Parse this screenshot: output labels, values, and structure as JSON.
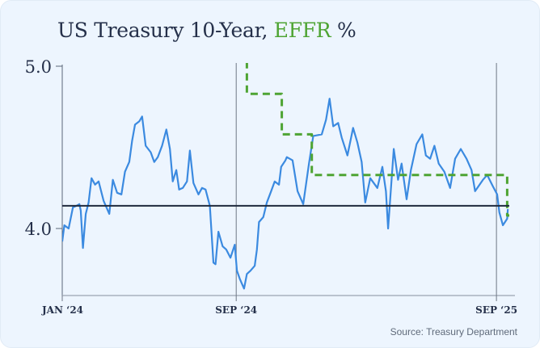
{
  "chart_data": {
    "type": "line",
    "title_parts": {
      "main": "US Treasury 10-Year, ",
      "accent": "EFFR",
      "suffix": " %"
    },
    "x_unit": "days since Jan 1 2024",
    "xlim": [
      0,
      627
    ],
    "ylim": [
      3.6,
      5.0
    ],
    "y_ticks": [
      {
        "value": 4.0,
        "label": "4.0"
      },
      {
        "value": 5.0,
        "label": "5.0"
      }
    ],
    "x_ticks": [
      {
        "value": 0,
        "label": "JAN ‘24"
      },
      {
        "value": 244,
        "label": "SEP ‘24"
      },
      {
        "value": 609,
        "label": "SEP ‘25"
      }
    ],
    "reference_line": 4.14,
    "series": [
      {
        "name": "US Treasury 10-Year",
        "color": "#3b8ae0",
        "style": "solid",
        "points": [
          [
            0,
            3.92
          ],
          [
            3,
            4.02
          ],
          [
            9,
            4.0
          ],
          [
            15,
            4.13
          ],
          [
            20,
            4.14
          ],
          [
            24,
            4.15
          ],
          [
            26,
            4.11
          ],
          [
            29,
            3.88
          ],
          [
            33,
            4.09
          ],
          [
            37,
            4.16
          ],
          [
            41,
            4.31
          ],
          [
            46,
            4.27
          ],
          [
            51,
            4.29
          ],
          [
            58,
            4.17
          ],
          [
            66,
            4.09
          ],
          [
            71,
            4.3
          ],
          [
            77,
            4.22
          ],
          [
            83,
            4.21
          ],
          [
            88,
            4.35
          ],
          [
            94,
            4.41
          ],
          [
            98,
            4.54
          ],
          [
            102,
            4.64
          ],
          [
            108,
            4.66
          ],
          [
            112,
            4.69
          ],
          [
            117,
            4.51
          ],
          [
            124,
            4.47
          ],
          [
            129,
            4.41
          ],
          [
            134,
            4.44
          ],
          [
            140,
            4.51
          ],
          [
            146,
            4.61
          ],
          [
            151,
            4.49
          ],
          [
            155,
            4.29
          ],
          [
            160,
            4.36
          ],
          [
            164,
            4.24
          ],
          [
            169,
            4.25
          ],
          [
            175,
            4.29
          ],
          [
            179,
            4.48
          ],
          [
            184,
            4.28
          ],
          [
            191,
            4.21
          ],
          [
            196,
            4.25
          ],
          [
            201,
            4.24
          ],
          [
            207,
            4.14
          ],
          [
            212,
            3.79
          ],
          [
            215,
            3.78
          ],
          [
            219,
            3.98
          ],
          [
            225,
            3.89
          ],
          [
            230,
            3.87
          ],
          [
            236,
            3.82
          ],
          [
            242,
            3.9
          ],
          [
            245,
            3.74
          ],
          [
            249,
            3.69
          ],
          [
            255,
            3.63
          ],
          [
            259,
            3.72
          ],
          [
            264,
            3.74
          ],
          [
            270,
            3.77
          ],
          [
            273,
            3.87
          ],
          [
            276,
            4.04
          ],
          [
            282,
            4.07
          ],
          [
            287,
            4.16
          ],
          [
            293,
            4.23
          ],
          [
            298,
            4.29
          ],
          [
            304,
            4.27
          ],
          [
            307,
            4.38
          ],
          [
            313,
            4.42
          ],
          [
            315,
            4.44
          ],
          [
            323,
            4.42
          ],
          [
            330,
            4.23
          ],
          [
            338,
            4.15
          ],
          [
            346,
            4.4
          ],
          [
            352,
            4.57
          ],
          [
            364,
            4.58
          ],
          [
            370,
            4.67
          ],
          [
            375,
            4.8
          ],
          [
            380,
            4.63
          ],
          [
            387,
            4.65
          ],
          [
            392,
            4.56
          ],
          [
            400,
            4.45
          ],
          [
            408,
            4.62
          ],
          [
            414,
            4.53
          ],
          [
            420,
            4.41
          ],
          [
            425,
            4.16
          ],
          [
            432,
            4.31
          ],
          [
            442,
            4.25
          ],
          [
            449,
            4.38
          ],
          [
            454,
            4.23
          ],
          [
            457,
            4.0
          ],
          [
            465,
            4.49
          ],
          [
            471,
            4.3
          ],
          [
            476,
            4.4
          ],
          [
            483,
            4.18
          ],
          [
            489,
            4.36
          ],
          [
            497,
            4.52
          ],
          [
            505,
            4.58
          ],
          [
            510,
            4.45
          ],
          [
            516,
            4.43
          ],
          [
            522,
            4.51
          ],
          [
            528,
            4.4
          ],
          [
            536,
            4.35
          ],
          [
            544,
            4.25
          ],
          [
            551,
            4.43
          ],
          [
            559,
            4.49
          ],
          [
            567,
            4.43
          ],
          [
            574,
            4.36
          ],
          [
            579,
            4.23
          ],
          [
            590,
            4.3
          ],
          [
            596,
            4.33
          ],
          [
            604,
            4.26
          ],
          [
            610,
            4.21
          ],
          [
            613,
            4.1
          ],
          [
            618,
            4.02
          ],
          [
            624,
            4.06
          ],
          [
            625,
            4.12
          ]
        ]
      },
      {
        "name": "EFFR",
        "color": "#4ea433",
        "style": "dashed",
        "step": true,
        "points": [
          [
            259,
            5.33
          ],
          [
            259,
            4.83
          ],
          [
            308,
            4.83
          ],
          [
            308,
            4.58
          ],
          [
            350,
            4.58
          ],
          [
            350,
            4.33
          ],
          [
            624,
            4.33
          ],
          [
            624,
            4.08
          ],
          [
            627,
            4.08
          ]
        ]
      }
    ],
    "source": "Source: Treasury Department"
  }
}
